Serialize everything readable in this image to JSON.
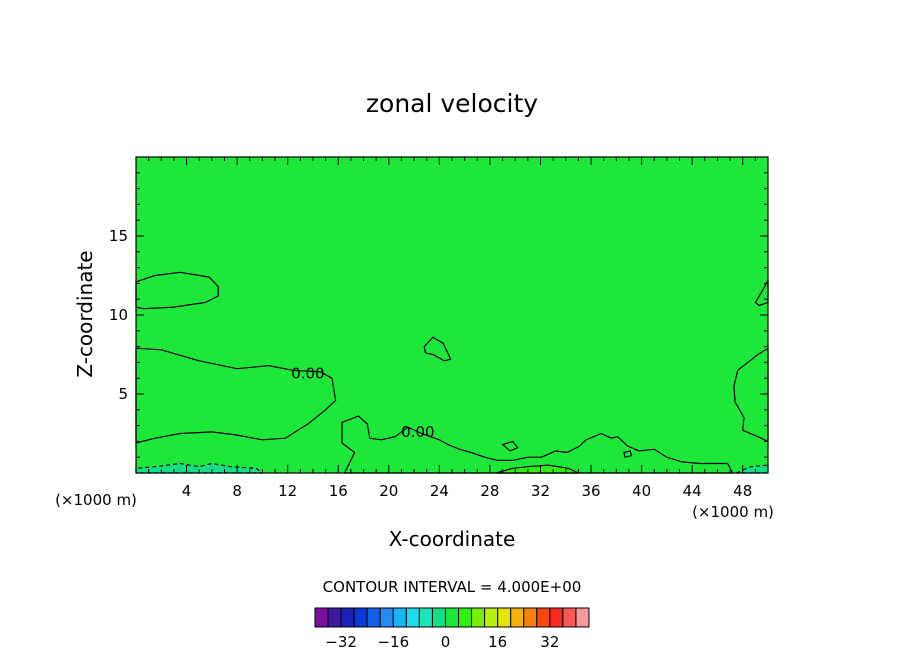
{
  "chart_data": {
    "type": "heatmap",
    "title": "zonal velocity",
    "xlabel": "X-coordinate",
    "ylabel": "Z-coordinate",
    "x_unit_left": "(×1000 m)",
    "x_unit_right": "(×1000 m)",
    "xlim": [
      0,
      50
    ],
    "ylim": [
      0,
      20
    ],
    "x_ticks": [
      4,
      8,
      12,
      16,
      20,
      24,
      28,
      32,
      36,
      40,
      44,
      48
    ],
    "y_ticks": [
      5,
      10,
      15
    ],
    "contour_interval_text": "CONTOUR INTERVAL = 4.000E+00",
    "contour_labels": [
      {
        "text": "0.00",
        "x": 13.6,
        "y": 6.3
      },
      {
        "text": "0.00",
        "x": 22.3,
        "y": 2.6
      }
    ],
    "background_value": 0,
    "regions": [
      {
        "name": "positive-upper-left",
        "value": 2,
        "level": 0,
        "points": [
          [
            0,
            10.5
          ],
          [
            0.6,
            10.4
          ],
          [
            3,
            10.5
          ],
          [
            5.5,
            10.8
          ],
          [
            6.5,
            11.2
          ],
          [
            6.5,
            11.8
          ],
          [
            5.8,
            12.4
          ],
          [
            3.5,
            12.7
          ],
          [
            1.5,
            12.5
          ],
          [
            0,
            12.1
          ]
        ]
      },
      {
        "name": "positive-mid-blob",
        "value": 2,
        "level": 0,
        "points": [
          [
            22.8,
            8.0
          ],
          [
            23.5,
            8.6
          ],
          [
            24.3,
            8.2
          ],
          [
            24.9,
            7.2
          ],
          [
            24.4,
            7.1
          ],
          [
            23.5,
            7.5
          ],
          [
            22.9,
            7.6
          ]
        ]
      },
      {
        "name": "positive-right-upper",
        "value": 2,
        "level": 0,
        "points": [
          [
            50,
            10.8
          ],
          [
            49.3,
            10.6
          ],
          [
            49,
            10.8
          ],
          [
            49.6,
            11.6
          ],
          [
            50,
            12.2
          ]
        ]
      },
      {
        "name": "positive-lower-left",
        "value": 2,
        "level": 0,
        "points": [
          [
            0,
            7.9
          ],
          [
            2,
            7.8
          ],
          [
            5,
            7.1
          ],
          [
            8,
            6.6
          ],
          [
            10.5,
            6.8
          ],
          [
            12.4,
            6.5
          ],
          [
            14.6,
            6.4
          ],
          [
            15.5,
            6.0
          ],
          [
            15.8,
            4.6
          ],
          [
            15,
            4.0
          ],
          [
            13.6,
            3.1
          ],
          [
            12.8,
            2.7
          ],
          [
            11.8,
            2.2
          ],
          [
            10,
            2.1
          ],
          [
            8,
            2.4
          ],
          [
            6,
            2.6
          ],
          [
            3.5,
            2.5
          ],
          [
            1.5,
            2.2
          ],
          [
            0,
            1.9
          ]
        ]
      },
      {
        "name": "positive-lower-right",
        "value": 2,
        "level": 0,
        "points": [
          [
            50,
            7.9
          ],
          [
            49.2,
            7.5
          ],
          [
            47.6,
            6.5
          ],
          [
            47.3,
            5.5
          ],
          [
            47.4,
            4.5
          ],
          [
            48.1,
            3.5
          ],
          [
            48.0,
            2.7
          ],
          [
            48.9,
            2.4
          ],
          [
            49.2,
            2.3
          ],
          [
            50,
            2.0
          ]
        ]
      },
      {
        "name": "positive-bottom-strip",
        "value": 2,
        "level": 0,
        "points": [
          [
            16.5,
            0
          ],
          [
            16.8,
            0.5
          ],
          [
            17.3,
            1.3
          ],
          [
            16.3,
            1.9
          ],
          [
            16.3,
            3.2
          ],
          [
            17.6,
            3.6
          ],
          [
            18.3,
            3.1
          ],
          [
            18.5,
            2.2
          ],
          [
            19.4,
            2.1
          ],
          [
            20.5,
            2.3
          ],
          [
            21.5,
            2.9
          ],
          [
            22.6,
            2.5
          ],
          [
            24,
            2.1
          ],
          [
            24.7,
            1.8
          ],
          [
            25.6,
            1.5
          ],
          [
            26.5,
            1.3
          ],
          [
            27.6,
            1.0
          ],
          [
            28.6,
            0.8
          ],
          [
            29.8,
            0.8
          ],
          [
            31,
            1.0
          ],
          [
            32.1,
            1.0
          ],
          [
            33.2,
            1.4
          ],
          [
            34.1,
            1.3
          ],
          [
            35.1,
            1.7
          ],
          [
            35.6,
            2.1
          ],
          [
            36.8,
            2.5
          ],
          [
            37.6,
            2.2
          ],
          [
            38.1,
            2.3
          ],
          [
            38.9,
            1.7
          ],
          [
            39.8,
            1.4
          ],
          [
            41,
            1.5
          ],
          [
            42,
            1.0
          ],
          [
            43.2,
            0.7
          ],
          [
            44.6,
            0.6
          ],
          [
            45.9,
            0.6
          ],
          [
            46.8,
            0.6
          ],
          [
            47.2,
            0
          ],
          [
            40,
            0
          ],
          [
            30,
            0
          ],
          [
            20,
            0
          ]
        ]
      },
      {
        "name": "positive-strong-core",
        "value": 6,
        "level": 4,
        "points": [
          [
            28.5,
            0
          ],
          [
            29.8,
            0.3
          ],
          [
            31,
            0.4
          ],
          [
            32.6,
            0.5
          ],
          [
            34.2,
            0.3
          ],
          [
            35,
            0
          ]
        ]
      },
      {
        "name": "negative-bottom-left",
        "value": -4,
        "level": -4,
        "points": [
          [
            0,
            0
          ],
          [
            0,
            0.3
          ],
          [
            1.5,
            0.4
          ],
          [
            3.5,
            0.6
          ],
          [
            5,
            0.4
          ],
          [
            6,
            0.6
          ],
          [
            7.5,
            0.4
          ],
          [
            9.5,
            0.3
          ],
          [
            10,
            0
          ]
        ]
      },
      {
        "name": "negative-bottom-right",
        "value": -4,
        "level": -4,
        "points": [
          [
            47.5,
            0
          ],
          [
            48.6,
            0.4
          ],
          [
            50,
            0.5
          ],
          [
            50,
            0
          ]
        ]
      },
      {
        "name": "positive-small-blob-29",
        "value": 2,
        "level": 0,
        "points": [
          [
            29.0,
            1.8
          ],
          [
            29.8,
            2.0
          ],
          [
            30.2,
            1.6
          ],
          [
            29.6,
            1.4
          ]
        ]
      },
      {
        "name": "positive-small-blob-38",
        "value": 2,
        "level": 0,
        "points": [
          [
            38.6,
            1.3
          ],
          [
            39.1,
            1.4
          ],
          [
            39.2,
            1.1
          ],
          [
            38.7,
            1.0
          ]
        ]
      }
    ],
    "colorbar": {
      "levels": [
        -36,
        -32,
        -28,
        -24,
        -20,
        -16,
        -12,
        -8,
        -4,
        0,
        4,
        8,
        12,
        16,
        20,
        24,
        28,
        32,
        36
      ],
      "colors": [
        "#7a0f9e",
        "#3d1a9e",
        "#1a22b8",
        "#0a3ad8",
        "#1060e8",
        "#1f8ef0",
        "#1ab4f2",
        "#1ddcef",
        "#1de6b8",
        "#12e089",
        "#1de83a",
        "#2ef00a",
        "#7af00a",
        "#b8f00a",
        "#e8e40a",
        "#f5b40a",
        "#f5820a",
        "#f5480a",
        "#f52a1f",
        "#f55a5a",
        "#f59a9a"
      ],
      "tick_labels": [
        "-32",
        "-16",
        "0",
        "16",
        "32"
      ],
      "tick_values": [
        -32,
        -16,
        0,
        16,
        32
      ]
    },
    "grid": false,
    "legend": "bottom"
  }
}
